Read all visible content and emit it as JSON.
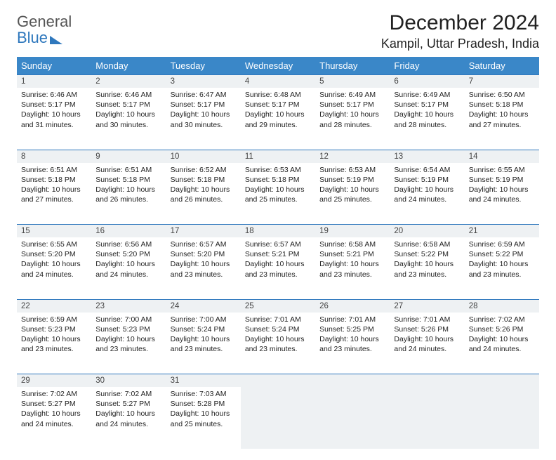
{
  "brand": {
    "word1": "General",
    "word2": "Blue"
  },
  "title": "December 2024",
  "location": "Kampil, Uttar Pradesh, India",
  "colors": {
    "header_bg": "#3a87c8",
    "header_text": "#ffffff",
    "divider": "#2f78bd",
    "daynum_bg": "#eef1f3",
    "text": "#222222"
  },
  "day_headers": [
    "Sunday",
    "Monday",
    "Tuesday",
    "Wednesday",
    "Thursday",
    "Friday",
    "Saturday"
  ],
  "weeks": [
    [
      {
        "n": "1",
        "sr": "Sunrise: 6:46 AM",
        "ss": "Sunset: 5:17 PM",
        "dl": "Daylight: 10 hours and 31 minutes."
      },
      {
        "n": "2",
        "sr": "Sunrise: 6:46 AM",
        "ss": "Sunset: 5:17 PM",
        "dl": "Daylight: 10 hours and 30 minutes."
      },
      {
        "n": "3",
        "sr": "Sunrise: 6:47 AM",
        "ss": "Sunset: 5:17 PM",
        "dl": "Daylight: 10 hours and 30 minutes."
      },
      {
        "n": "4",
        "sr": "Sunrise: 6:48 AM",
        "ss": "Sunset: 5:17 PM",
        "dl": "Daylight: 10 hours and 29 minutes."
      },
      {
        "n": "5",
        "sr": "Sunrise: 6:49 AM",
        "ss": "Sunset: 5:17 PM",
        "dl": "Daylight: 10 hours and 28 minutes."
      },
      {
        "n": "6",
        "sr": "Sunrise: 6:49 AM",
        "ss": "Sunset: 5:17 PM",
        "dl": "Daylight: 10 hours and 28 minutes."
      },
      {
        "n": "7",
        "sr": "Sunrise: 6:50 AM",
        "ss": "Sunset: 5:18 PM",
        "dl": "Daylight: 10 hours and 27 minutes."
      }
    ],
    [
      {
        "n": "8",
        "sr": "Sunrise: 6:51 AM",
        "ss": "Sunset: 5:18 PM",
        "dl": "Daylight: 10 hours and 27 minutes."
      },
      {
        "n": "9",
        "sr": "Sunrise: 6:51 AM",
        "ss": "Sunset: 5:18 PM",
        "dl": "Daylight: 10 hours and 26 minutes."
      },
      {
        "n": "10",
        "sr": "Sunrise: 6:52 AM",
        "ss": "Sunset: 5:18 PM",
        "dl": "Daylight: 10 hours and 26 minutes."
      },
      {
        "n": "11",
        "sr": "Sunrise: 6:53 AM",
        "ss": "Sunset: 5:18 PM",
        "dl": "Daylight: 10 hours and 25 minutes."
      },
      {
        "n": "12",
        "sr": "Sunrise: 6:53 AM",
        "ss": "Sunset: 5:19 PM",
        "dl": "Daylight: 10 hours and 25 minutes."
      },
      {
        "n": "13",
        "sr": "Sunrise: 6:54 AM",
        "ss": "Sunset: 5:19 PM",
        "dl": "Daylight: 10 hours and 24 minutes."
      },
      {
        "n": "14",
        "sr": "Sunrise: 6:55 AM",
        "ss": "Sunset: 5:19 PM",
        "dl": "Daylight: 10 hours and 24 minutes."
      }
    ],
    [
      {
        "n": "15",
        "sr": "Sunrise: 6:55 AM",
        "ss": "Sunset: 5:20 PM",
        "dl": "Daylight: 10 hours and 24 minutes."
      },
      {
        "n": "16",
        "sr": "Sunrise: 6:56 AM",
        "ss": "Sunset: 5:20 PM",
        "dl": "Daylight: 10 hours and 24 minutes."
      },
      {
        "n": "17",
        "sr": "Sunrise: 6:57 AM",
        "ss": "Sunset: 5:20 PM",
        "dl": "Daylight: 10 hours and 23 minutes."
      },
      {
        "n": "18",
        "sr": "Sunrise: 6:57 AM",
        "ss": "Sunset: 5:21 PM",
        "dl": "Daylight: 10 hours and 23 minutes."
      },
      {
        "n": "19",
        "sr": "Sunrise: 6:58 AM",
        "ss": "Sunset: 5:21 PM",
        "dl": "Daylight: 10 hours and 23 minutes."
      },
      {
        "n": "20",
        "sr": "Sunrise: 6:58 AM",
        "ss": "Sunset: 5:22 PM",
        "dl": "Daylight: 10 hours and 23 minutes."
      },
      {
        "n": "21",
        "sr": "Sunrise: 6:59 AM",
        "ss": "Sunset: 5:22 PM",
        "dl": "Daylight: 10 hours and 23 minutes."
      }
    ],
    [
      {
        "n": "22",
        "sr": "Sunrise: 6:59 AM",
        "ss": "Sunset: 5:23 PM",
        "dl": "Daylight: 10 hours and 23 minutes."
      },
      {
        "n": "23",
        "sr": "Sunrise: 7:00 AM",
        "ss": "Sunset: 5:23 PM",
        "dl": "Daylight: 10 hours and 23 minutes."
      },
      {
        "n": "24",
        "sr": "Sunrise: 7:00 AM",
        "ss": "Sunset: 5:24 PM",
        "dl": "Daylight: 10 hours and 23 minutes."
      },
      {
        "n": "25",
        "sr": "Sunrise: 7:01 AM",
        "ss": "Sunset: 5:24 PM",
        "dl": "Daylight: 10 hours and 23 minutes."
      },
      {
        "n": "26",
        "sr": "Sunrise: 7:01 AM",
        "ss": "Sunset: 5:25 PM",
        "dl": "Daylight: 10 hours and 23 minutes."
      },
      {
        "n": "27",
        "sr": "Sunrise: 7:01 AM",
        "ss": "Sunset: 5:26 PM",
        "dl": "Daylight: 10 hours and 24 minutes."
      },
      {
        "n": "28",
        "sr": "Sunrise: 7:02 AM",
        "ss": "Sunset: 5:26 PM",
        "dl": "Daylight: 10 hours and 24 minutes."
      }
    ],
    [
      {
        "n": "29",
        "sr": "Sunrise: 7:02 AM",
        "ss": "Sunset: 5:27 PM",
        "dl": "Daylight: 10 hours and 24 minutes."
      },
      {
        "n": "30",
        "sr": "Sunrise: 7:02 AM",
        "ss": "Sunset: 5:27 PM",
        "dl": "Daylight: 10 hours and 24 minutes."
      },
      {
        "n": "31",
        "sr": "Sunrise: 7:03 AM",
        "ss": "Sunset: 5:28 PM",
        "dl": "Daylight: 10 hours and 25 minutes."
      },
      null,
      null,
      null,
      null
    ]
  ]
}
